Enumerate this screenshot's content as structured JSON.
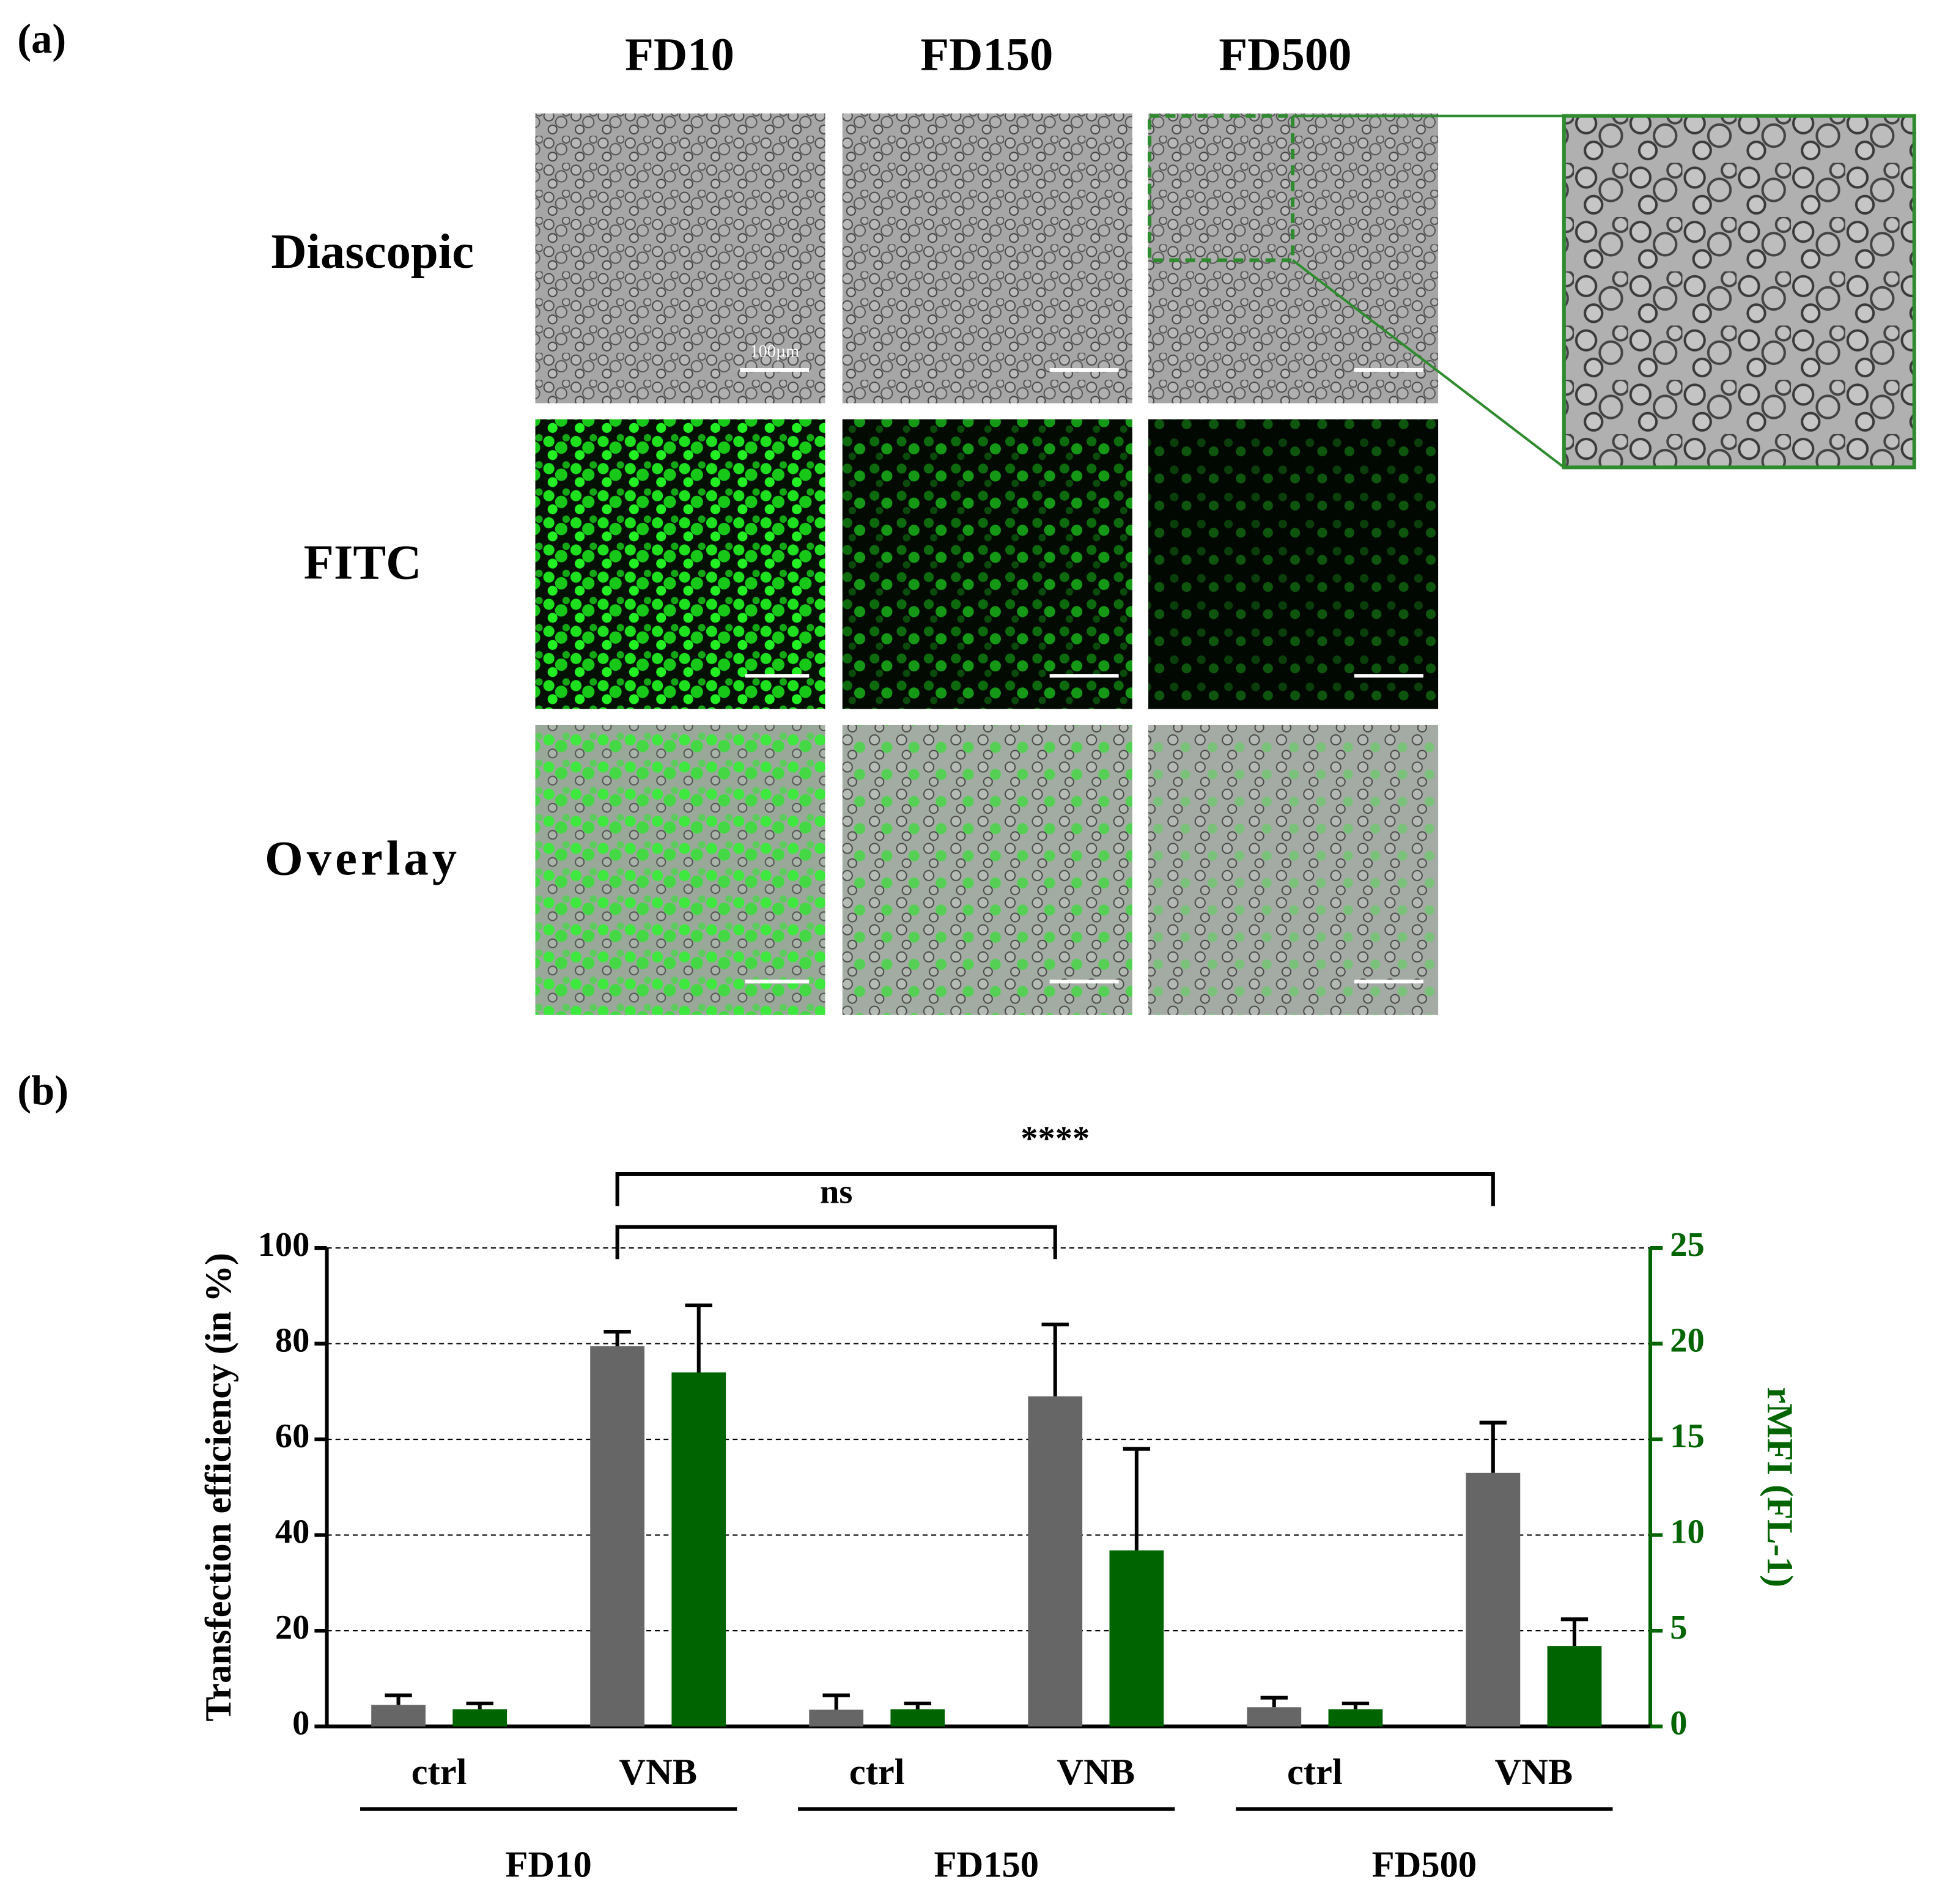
{
  "panel_a": {
    "label": "(a)",
    "columns": [
      "FD10",
      "FD150",
      "FD500"
    ],
    "rows": [
      "Diascopic",
      "FITC",
      "Overlay"
    ],
    "scale_bar": "100µm"
  },
  "chart_data": {
    "type": "bar",
    "label": "(b)",
    "categories": [
      "ctrl",
      "VNB",
      "ctrl",
      "VNB",
      "ctrl",
      "VNB"
    ],
    "groups": [
      "FD10",
      "FD150",
      "FD500"
    ],
    "ylabel": "Transfection efficiency (in %)",
    "y2label": "rMFI (FL-1)",
    "ylim": [
      0,
      100
    ],
    "yticks": [
      0,
      20,
      40,
      60,
      80,
      100
    ],
    "y2lim": [
      0,
      25
    ],
    "y2ticks": [
      0,
      5,
      10,
      15,
      20,
      25
    ],
    "grid": true,
    "series": [
      {
        "color": "#666666",
        "values": [
          4.5,
          79.5,
          3.5,
          69,
          4,
          53
        ],
        "errors": [
          2,
          3,
          3,
          15,
          2,
          10.5
        ]
      },
      {
        "color": "#006400",
        "axis": "y2",
        "values": [
          0.9,
          18.5,
          0.9,
          9.2,
          0.9,
          4.2
        ],
        "errors": [
          0.3,
          3.5,
          0.3,
          5.3,
          0.3,
          1.4
        ]
      }
    ],
    "annotations": [
      "****",
      "ns"
    ]
  }
}
